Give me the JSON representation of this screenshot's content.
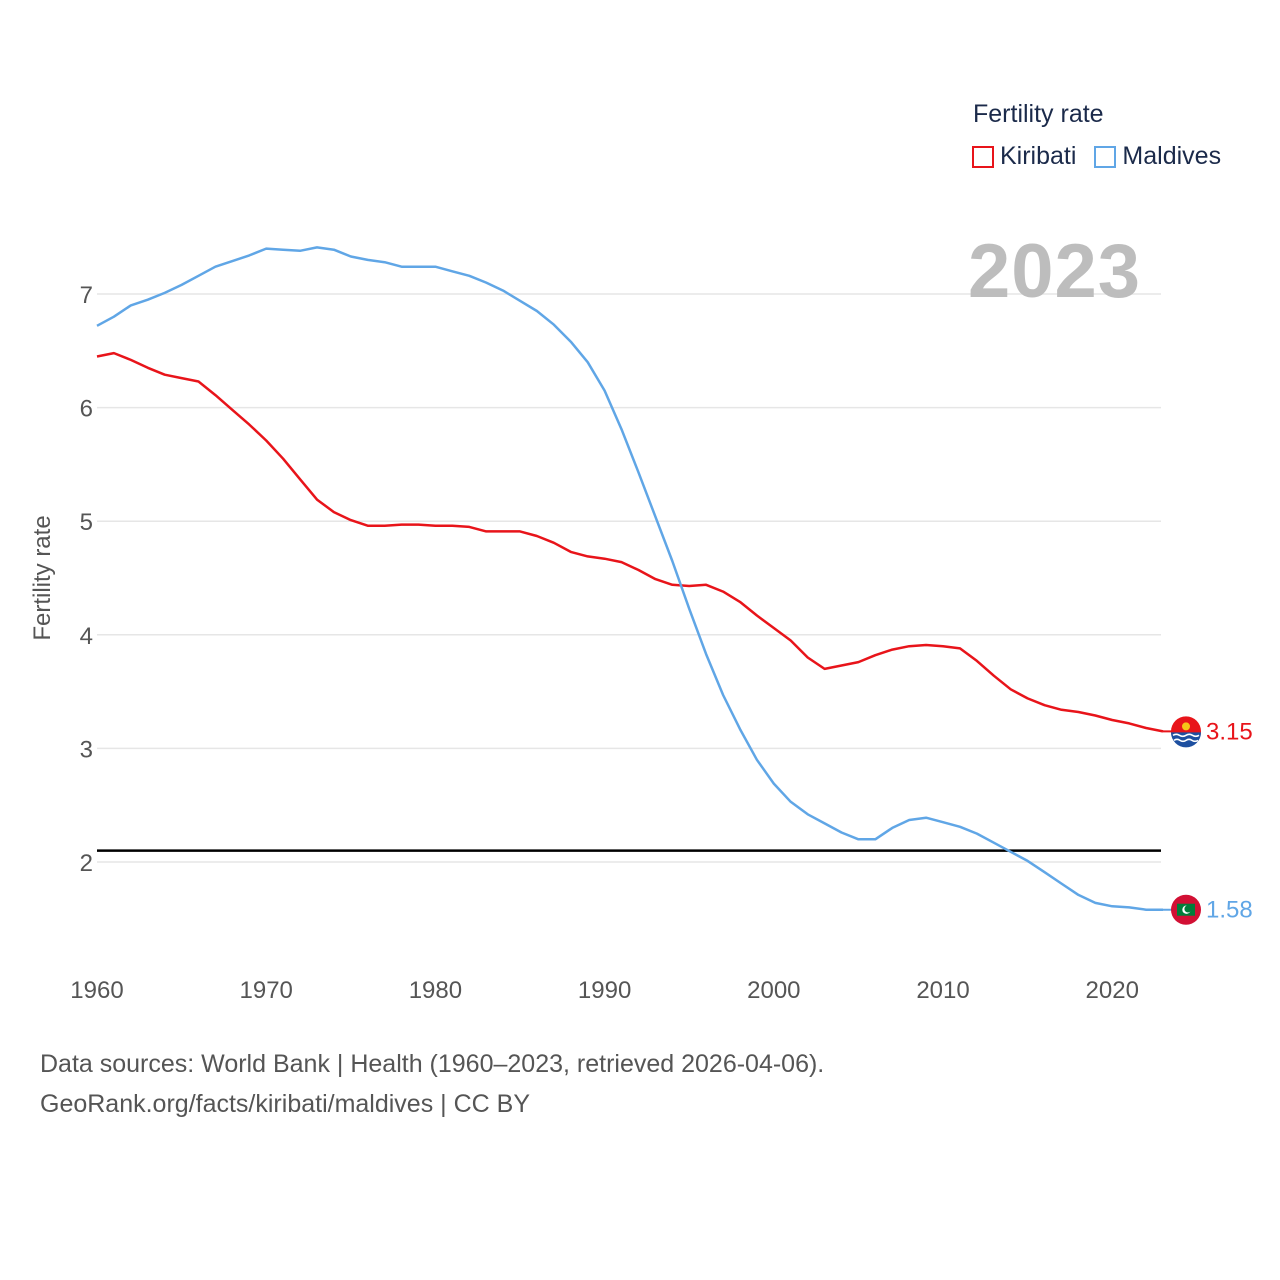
{
  "legend": {
    "title": "Fertility rate",
    "items": [
      {
        "label": "Kiribati",
        "color": "#e8141a"
      },
      {
        "label": "Maldives",
        "color": "#60a6e6"
      }
    ]
  },
  "year_label": "2023",
  "footer": {
    "line1": "Data sources: World Bank | Health (1960–2023, retrieved 2026-04-06).",
    "line2": "GeoRank.org/facts/kiribati/maldives | CC BY"
  },
  "chart_data": {
    "type": "line",
    "title": "",
    "xlabel": "",
    "ylabel": "Fertility rate",
    "xlim": [
      1960,
      2023
    ],
    "ylim": [
      1.2,
      7.8
    ],
    "xticks": [
      1960,
      1970,
      1980,
      1990,
      2000,
      2010,
      2020
    ],
    "yticks": [
      2,
      3,
      4,
      5,
      6,
      7
    ],
    "reference_line": {
      "y": 2.1,
      "color": "#000000"
    },
    "grid": true,
    "series": [
      {
        "name": "Kiribati",
        "color": "#e8141a",
        "end_label": "3.15",
        "flag": "kiribati-flag",
        "x": [
          1960,
          1961,
          1962,
          1963,
          1964,
          1965,
          1966,
          1967,
          1968,
          1969,
          1970,
          1971,
          1972,
          1973,
          1974,
          1975,
          1976,
          1977,
          1978,
          1979,
          1980,
          1981,
          1982,
          1983,
          1984,
          1985,
          1986,
          1987,
          1988,
          1989,
          1990,
          1991,
          1992,
          1993,
          1994,
          1995,
          1996,
          1997,
          1998,
          1999,
          2000,
          2001,
          2002,
          2003,
          2004,
          2005,
          2006,
          2007,
          2008,
          2009,
          2010,
          2011,
          2012,
          2013,
          2014,
          2015,
          2016,
          2017,
          2018,
          2019,
          2020,
          2021,
          2022,
          2023
        ],
        "y": [
          6.45,
          6.48,
          6.42,
          6.35,
          6.29,
          6.26,
          6.23,
          6.11,
          5.98,
          5.85,
          5.71,
          5.55,
          5.37,
          5.19,
          5.08,
          5.01,
          4.96,
          4.96,
          4.97,
          4.97,
          4.96,
          4.96,
          4.95,
          4.91,
          4.91,
          4.91,
          4.87,
          4.81,
          4.73,
          4.69,
          4.67,
          4.64,
          4.57,
          4.49,
          4.44,
          4.43,
          4.44,
          4.38,
          4.29,
          4.17,
          4.06,
          3.95,
          3.8,
          3.7,
          3.73,
          3.76,
          3.82,
          3.87,
          3.9,
          3.91,
          3.9,
          3.88,
          3.77,
          3.64,
          3.52,
          3.44,
          3.38,
          3.34,
          3.32,
          3.29,
          3.25,
          3.22,
          3.18,
          3.15
        ]
      },
      {
        "name": "Maldives",
        "color": "#60a6e6",
        "end_label": "1.58",
        "flag": "maldives-flag",
        "x": [
          1960,
          1961,
          1962,
          1963,
          1964,
          1965,
          1966,
          1967,
          1968,
          1969,
          1970,
          1971,
          1972,
          1973,
          1974,
          1975,
          1976,
          1977,
          1978,
          1979,
          1980,
          1981,
          1982,
          1983,
          1984,
          1985,
          1986,
          1987,
          1988,
          1989,
          1990,
          1991,
          1992,
          1993,
          1994,
          1995,
          1996,
          1997,
          1998,
          1999,
          2000,
          2001,
          2002,
          2003,
          2004,
          2005,
          2006,
          2007,
          2008,
          2009,
          2010,
          2011,
          2012,
          2013,
          2014,
          2015,
          2016,
          2017,
          2018,
          2019,
          2020,
          2021,
          2022,
          2023
        ],
        "y": [
          6.72,
          6.8,
          6.9,
          6.95,
          7.01,
          7.08,
          7.16,
          7.24,
          7.29,
          7.34,
          7.4,
          7.39,
          7.38,
          7.41,
          7.39,
          7.33,
          7.3,
          7.28,
          7.24,
          7.24,
          7.24,
          7.2,
          7.16,
          7.1,
          7.03,
          6.94,
          6.85,
          6.73,
          6.58,
          6.4,
          6.15,
          5.81,
          5.43,
          5.04,
          4.65,
          4.23,
          3.83,
          3.47,
          3.17,
          2.9,
          2.69,
          2.53,
          2.42,
          2.34,
          2.26,
          2.2,
          2.2,
          2.3,
          2.37,
          2.39,
          2.35,
          2.31,
          2.25,
          2.17,
          2.09,
          2.01,
          1.91,
          1.81,
          1.71,
          1.64,
          1.61,
          1.6,
          1.58,
          1.58
        ]
      }
    ]
  }
}
